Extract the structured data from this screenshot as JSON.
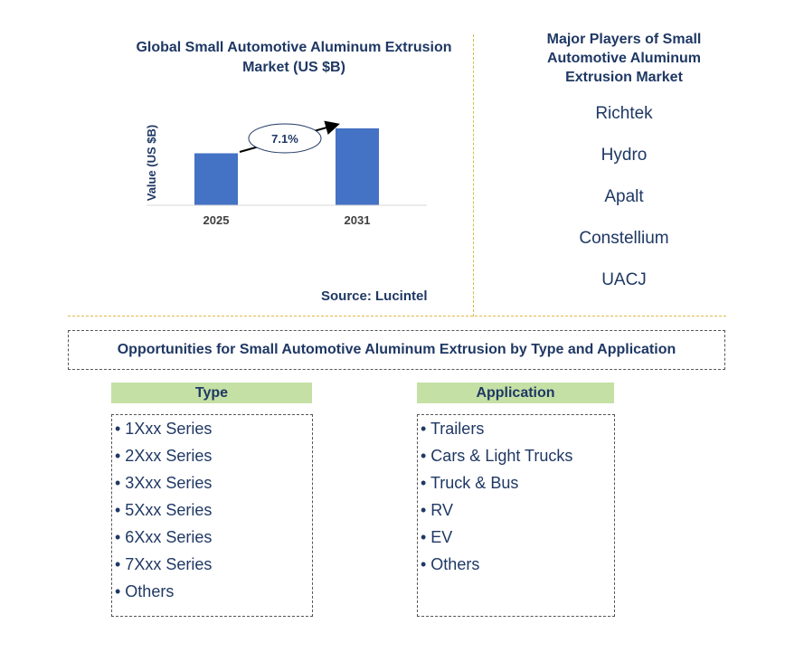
{
  "chart_data": {
    "type": "bar",
    "title": "Global Small Automotive Aluminum Extrusion Market (US $B)",
    "ylabel": "Value (US $B)",
    "categories": [
      "2025",
      "2031"
    ],
    "values": [
      1.0,
      1.48
    ],
    "ylim": [
      0,
      1.6
    ],
    "annotation": "7.1%",
    "colors": {
      "bar": "#4472c4",
      "text": "#1f3864",
      "tick": "#404040"
    }
  },
  "source": "Source: Lucintel",
  "players": {
    "title": "Major Players of Small Automotive Aluminum Extrusion Market",
    "items": [
      "Richtek",
      "Hydro",
      "Apalt",
      "Constellium",
      "UACJ"
    ]
  },
  "opportunities": {
    "title": "Opportunities for Small Automotive Aluminum Extrusion by Type and Application",
    "type_header": "Type",
    "type_items": [
      "• 1Xxx Series",
      "• 2Xxx Series",
      "• 3Xxx Series",
      "• 5Xxx Series",
      "• 6Xxx Series",
      "• 7Xxx Series",
      "• Others"
    ],
    "application_header": "Application",
    "application_items": [
      "• Trailers",
      "• Cars & Light Trucks",
      "• Truck & Bus",
      "• RV",
      "• EV",
      "• Others"
    ],
    "header_color": "#c5e0a5"
  }
}
